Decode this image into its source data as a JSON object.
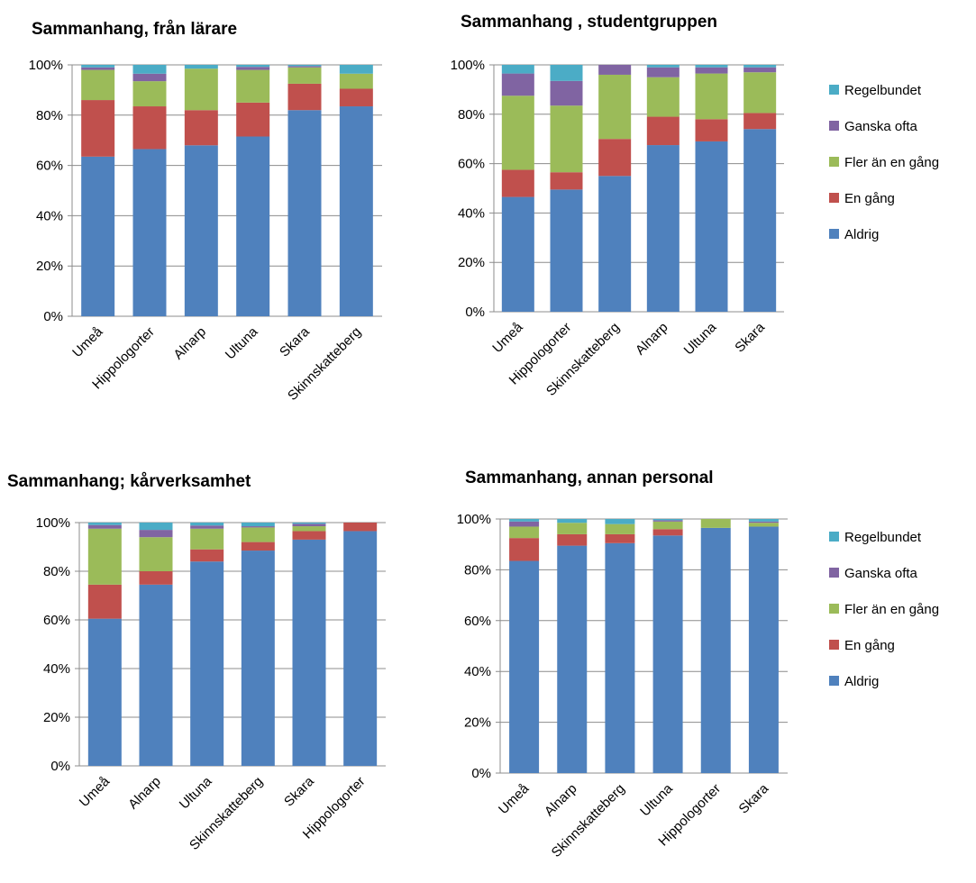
{
  "colors": {
    "Aldrig": "#4f81bd",
    "En gång": "#c0504d",
    "Fler än en gång": "#9bbb59",
    "Ganska ofta": "#8064a2",
    "Regelbundet": "#4bacc6"
  },
  "legend": {
    "items": [
      "Regelbundet",
      "Ganska ofta",
      "Fler än en gång",
      "En gång",
      "Aldrig"
    ]
  },
  "chart_data": [
    {
      "type": "bar",
      "stacked": true,
      "title": "Sammanhang, från lärare",
      "ylim": [
        0,
        100
      ],
      "yticks": [
        "0%",
        "20%",
        "40%",
        "60%",
        "80%",
        "100%"
      ],
      "grid": true,
      "categories": [
        "Umeå",
        "Hippologorter",
        "Alnarp",
        "Ultuna",
        "Skara",
        "Skinnskatteberg"
      ],
      "series": [
        {
          "name": "Aldrig",
          "values": [
            63.5,
            66.5,
            68,
            71.5,
            82,
            83.5
          ]
        },
        {
          "name": "En gång",
          "values": [
            22.5,
            17,
            14,
            13.5,
            10.5,
            7
          ]
        },
        {
          "name": "Fler än en gång",
          "values": [
            12,
            10,
            16.5,
            13,
            6.5,
            6
          ]
        },
        {
          "name": "Ganska ofta",
          "values": [
            1,
            3,
            0,
            1.2,
            0.5,
            0
          ]
        },
        {
          "name": "Regelbundet",
          "values": [
            1,
            3.5,
            1.5,
            0.8,
            0.5,
            3.5
          ]
        }
      ]
    },
    {
      "type": "bar",
      "stacked": true,
      "title": "Sammanhang , studentgruppen",
      "ylim": [
        0,
        100
      ],
      "yticks": [
        "0%",
        "20%",
        "40%",
        "60%",
        "80%",
        "100%"
      ],
      "grid": true,
      "legend_position": "right",
      "categories": [
        "Umeå",
        "Hippologorter",
        "Skinnskatteberg",
        "Alnarp",
        "Ultuna",
        "Skara"
      ],
      "series": [
        {
          "name": "Aldrig",
          "values": [
            46.5,
            49.5,
            55,
            67.5,
            69,
            74
          ]
        },
        {
          "name": "En gång",
          "values": [
            11,
            7,
            15,
            11.5,
            9,
            6.5
          ]
        },
        {
          "name": "Fler än en gång",
          "values": [
            30,
            27,
            26,
            16,
            18.5,
            16.5
          ]
        },
        {
          "name": "Ganska ofta",
          "values": [
            9,
            10,
            4,
            4,
            2.5,
            2
          ]
        },
        {
          "name": "Regelbundet",
          "values": [
            3.5,
            6.5,
            0,
            1,
            1,
            1
          ]
        }
      ]
    },
    {
      "type": "bar",
      "stacked": true,
      "title": "Sammanhang; kårverksamhet",
      "ylim": [
        0,
        100
      ],
      "yticks": [
        "0%",
        "20%",
        "40%",
        "60%",
        "80%",
        "100%"
      ],
      "grid": true,
      "categories": [
        "Umeå",
        "Alnarp",
        "Ultuna",
        "Skinnskatteberg",
        "Skara",
        "Hippologorter"
      ],
      "series": [
        {
          "name": "Aldrig",
          "values": [
            60.5,
            74.5,
            84,
            88.5,
            93,
            96.5
          ]
        },
        {
          "name": "En gång",
          "values": [
            14,
            5.5,
            5,
            3.5,
            3.5,
            3.5
          ]
        },
        {
          "name": "Fler än en gång",
          "values": [
            23,
            14,
            8.5,
            6,
            2,
            0
          ]
        },
        {
          "name": "Ganska ofta",
          "values": [
            1.5,
            3,
            1.3,
            0.5,
            1,
            0
          ]
        },
        {
          "name": "Regelbundet",
          "values": [
            1,
            3,
            1.2,
            1.5,
            0.5,
            0
          ]
        }
      ]
    },
    {
      "type": "bar",
      "stacked": true,
      "title": "Sammanhang, annan personal",
      "ylim": [
        0,
        100
      ],
      "yticks": [
        "0%",
        "20%",
        "40%",
        "60%",
        "80%",
        "100%"
      ],
      "grid": true,
      "legend_position": "right",
      "categories": [
        "Umeå",
        "Alnarp",
        "Skinnskatteberg",
        "Ultuna",
        "Hippologorter",
        "Skara"
      ],
      "series": [
        {
          "name": "Aldrig",
          "values": [
            83.5,
            89.5,
            90.5,
            93.5,
            96.5,
            97
          ]
        },
        {
          "name": "En gång",
          "values": [
            9,
            4.5,
            3.5,
            2.5,
            0,
            0
          ]
        },
        {
          "name": "Fler än en gång",
          "values": [
            4.5,
            4.5,
            4,
            3,
            3.5,
            1.5
          ]
        },
        {
          "name": "Ganska ofta",
          "values": [
            2,
            0,
            0,
            0.5,
            0,
            0.5
          ]
        },
        {
          "name": "Regelbundet",
          "values": [
            1,
            1.5,
            2,
            0.5,
            0,
            1
          ]
        }
      ]
    }
  ]
}
